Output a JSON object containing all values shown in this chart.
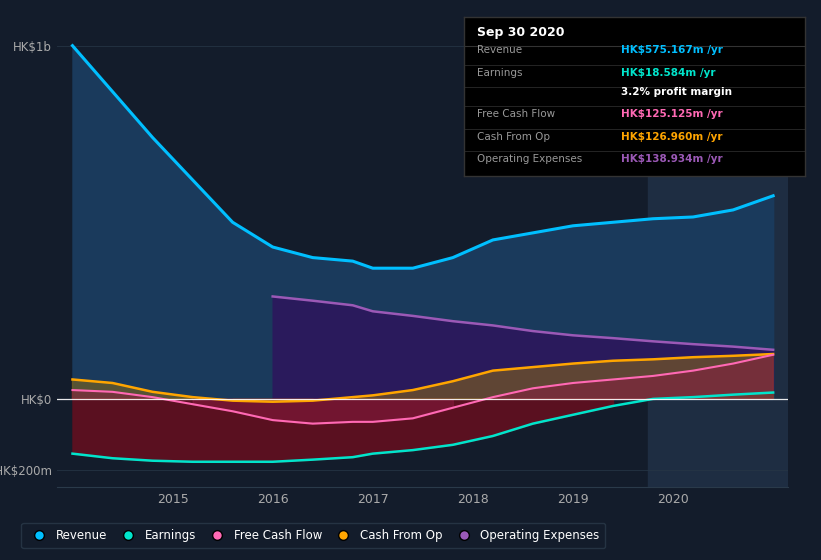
{
  "background_color": "#131c2b",
  "plot_bg_color": "#131c2b",
  "highlight_bg_color": "#1e2d42",
  "title": "Sep 30 2020",
  "ylabel_top": "HK$1b",
  "ylabel_zero": "HK$0",
  "ylabel_neg": "-HK$200m",
  "years": [
    2014.0,
    2014.4,
    2014.8,
    2015.2,
    2015.6,
    2016.0,
    2016.4,
    2016.8,
    2017.0,
    2017.4,
    2017.8,
    2018.2,
    2018.6,
    2019.0,
    2019.4,
    2019.8,
    2020.2,
    2020.6,
    2021.0
  ],
  "revenue": [
    1000,
    870,
    740,
    620,
    500,
    430,
    400,
    390,
    370,
    370,
    400,
    450,
    470,
    490,
    500,
    510,
    515,
    535,
    575
  ],
  "earnings": [
    -155,
    -168,
    -175,
    -178,
    -178,
    -178,
    -172,
    -165,
    -155,
    -145,
    -130,
    -105,
    -70,
    -45,
    -20,
    0,
    5,
    12,
    18
  ],
  "free_cash_flow": [
    25,
    20,
    5,
    -15,
    -35,
    -60,
    -70,
    -65,
    -65,
    -55,
    -25,
    5,
    30,
    45,
    55,
    65,
    80,
    100,
    125
  ],
  "cash_from_op": [
    55,
    45,
    20,
    5,
    -5,
    -8,
    -5,
    5,
    10,
    25,
    50,
    80,
    90,
    100,
    108,
    112,
    118,
    122,
    127
  ],
  "operating_expenses": [
    0,
    0,
    0,
    0,
    0,
    290,
    278,
    265,
    248,
    235,
    220,
    208,
    192,
    180,
    172,
    163,
    155,
    148,
    139
  ],
  "revenue_color": "#00bfff",
  "earnings_color": "#00e5cc",
  "free_cash_flow_color": "#ff69b4",
  "cash_from_op_color": "#ffa500",
  "operating_expenses_color": "#9b59b6",
  "revenue_fill_color": "#1a3a5c",
  "operating_expenses_fill_color": "#2a1a5c",
  "xlim_start": 2013.85,
  "xlim_end": 2021.15,
  "ylim_min": -250,
  "ylim_max": 1050,
  "highlight_x_start": 2019.75,
  "highlight_x_end": 2021.15,
  "info_rows": [
    {
      "label": "Revenue",
      "value": "HK$575.167m /yr",
      "color": "#00bfff"
    },
    {
      "label": "Earnings",
      "value": "HK$18.584m /yr",
      "color": "#00e5cc"
    },
    {
      "label": "",
      "value": "3.2% profit margin",
      "color": "white"
    },
    {
      "label": "Free Cash Flow",
      "value": "HK$125.125m /yr",
      "color": "#ff69b4"
    },
    {
      "label": "Cash From Op",
      "value": "HK$126.960m /yr",
      "color": "#ffa500"
    },
    {
      "label": "Operating Expenses",
      "value": "HK$138.934m /yr",
      "color": "#9b59b6"
    }
  ]
}
